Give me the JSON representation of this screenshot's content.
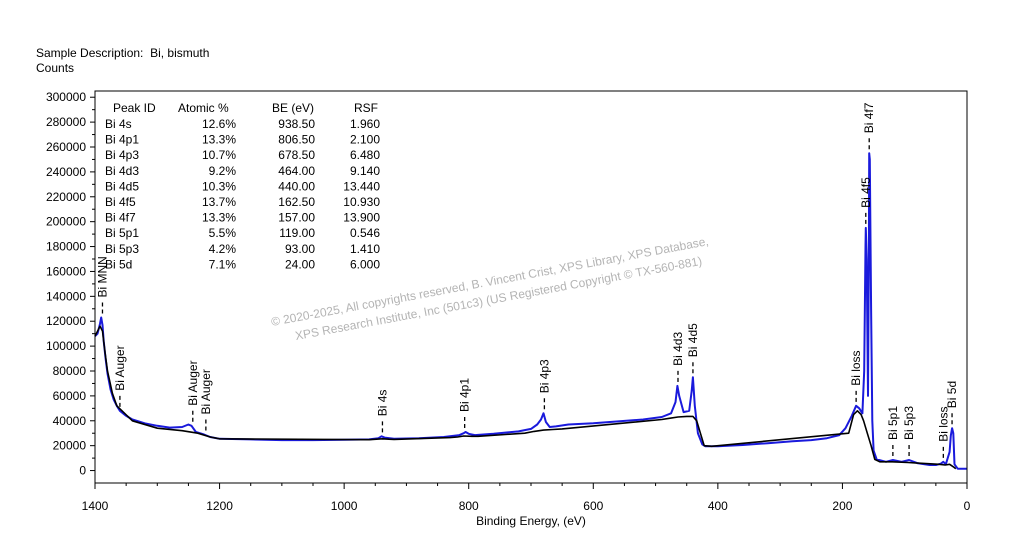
{
  "header": {
    "sample_label": "Sample Description:",
    "sample_value": "Bi, bismuth",
    "counts_label": "Counts"
  },
  "watermark": {
    "line1": "© 2020-2025, All copyrights reserved, B. Vincent Crist, XPS Library, XPS Database,",
    "line2": "XPS Research Institute, Inc (501c3) (US Registered Copyright © TX-560-881)"
  },
  "peak_table": {
    "headers": [
      "Peak ID",
      "Atomic %",
      "BE (eV)",
      "RSF"
    ],
    "rows": [
      [
        "Bi 4s",
        "12.6%",
        "938.50",
        "1.960"
      ],
      [
        "Bi 4p1",
        "13.3%",
        "806.50",
        "2.100"
      ],
      [
        "Bi 4p3",
        "10.7%",
        "678.50",
        "6.480"
      ],
      [
        "Bi 4d3",
        "9.2%",
        "464.00",
        "9.140"
      ],
      [
        "Bi 4d5",
        "10.3%",
        "440.00",
        "13.440"
      ],
      [
        "Bi 4f5",
        "13.7%",
        "162.50",
        "10.930"
      ],
      [
        "Bi 4f7",
        "13.3%",
        "157.00",
        "13.900"
      ],
      [
        "Bi 5p1",
        "5.5%",
        "119.00",
        "0.546"
      ],
      [
        "Bi 5p3",
        "4.2%",
        "93.00",
        "1.410"
      ],
      [
        "Bi 5d",
        "7.1%",
        "24.00",
        "6.000"
      ]
    ]
  },
  "chart_data": {
    "type": "line",
    "title": "",
    "xlabel": "Binding Energy, (eV)",
    "ylabel": "Counts",
    "xlim": [
      1400,
      0
    ],
    "ylim": [
      -10000,
      305000
    ],
    "x_ticks": [
      1400,
      1200,
      1000,
      800,
      600,
      400,
      200,
      0
    ],
    "y_ticks": [
      0,
      20000,
      40000,
      60000,
      80000,
      100000,
      120000,
      140000,
      160000,
      180000,
      200000,
      220000,
      240000,
      260000,
      280000,
      300000
    ],
    "colors": {
      "spectrum": "#1a1adc",
      "background": "#000000",
      "axis": "#000000"
    },
    "series": [
      {
        "name": "spectrum",
        "points": [
          [
            1400,
            108000
          ],
          [
            1396,
            110000
          ],
          [
            1392,
            118000
          ],
          [
            1390,
            123000
          ],
          [
            1388,
            117000
          ],
          [
            1386,
            104000
          ],
          [
            1383,
            90000
          ],
          [
            1380,
            78000
          ],
          [
            1375,
            65000
          ],
          [
            1370,
            57000
          ],
          [
            1365,
            52000
          ],
          [
            1360,
            48000
          ],
          [
            1350,
            44000
          ],
          [
            1340,
            41000
          ],
          [
            1320,
            38000
          ],
          [
            1300,
            36000
          ],
          [
            1280,
            34500
          ],
          [
            1260,
            35000
          ],
          [
            1250,
            37000
          ],
          [
            1245,
            36000
          ],
          [
            1238,
            31000
          ],
          [
            1225,
            29000
          ],
          [
            1215,
            27000
          ],
          [
            1200,
            25500
          ],
          [
            1150,
            25000
          ],
          [
            1100,
            24500
          ],
          [
            1050,
            24500
          ],
          [
            1000,
            24700
          ],
          [
            960,
            25000
          ],
          [
            945,
            26000
          ],
          [
            940,
            27500
          ],
          [
            935,
            26500
          ],
          [
            920,
            25500
          ],
          [
            880,
            26000
          ],
          [
            840,
            27000
          ],
          [
            815,
            28500
          ],
          [
            808,
            30000
          ],
          [
            805,
            31000
          ],
          [
            800,
            29500
          ],
          [
            790,
            28500
          ],
          [
            760,
            29500
          ],
          [
            720,
            31500
          ],
          [
            700,
            33500
          ],
          [
            690,
            37000
          ],
          [
            684,
            41000
          ],
          [
            680,
            46000
          ],
          [
            676,
            39000
          ],
          [
            670,
            35000
          ],
          [
            660,
            35500
          ],
          [
            640,
            37000
          ],
          [
            600,
            38000
          ],
          [
            560,
            39500
          ],
          [
            520,
            41000
          ],
          [
            490,
            43000
          ],
          [
            475,
            46000
          ],
          [
            468,
            55000
          ],
          [
            465,
            68000
          ],
          [
            462,
            60000
          ],
          [
            455,
            47000
          ],
          [
            446,
            48000
          ],
          [
            442,
            64000
          ],
          [
            440,
            75000
          ],
          [
            437,
            52000
          ],
          [
            432,
            30000
          ],
          [
            425,
            21000
          ],
          [
            420,
            19500
          ],
          [
            400,
            19500
          ],
          [
            360,
            20500
          ],
          [
            320,
            22000
          ],
          [
            280,
            23500
          ],
          [
            250,
            24500
          ],
          [
            225,
            26000
          ],
          [
            205,
            28500
          ],
          [
            195,
            34000
          ],
          [
            185,
            44000
          ],
          [
            178,
            52000
          ],
          [
            173,
            50000
          ],
          [
            168,
            46000
          ],
          [
            165,
            80000
          ],
          [
            163,
            180000
          ],
          [
            162.5,
            195000
          ],
          [
            161,
            170000
          ],
          [
            159,
            60000
          ],
          [
            157.5,
            180000
          ],
          [
            157,
            255000
          ],
          [
            156,
            250000
          ],
          [
            154,
            130000
          ],
          [
            152,
            40000
          ],
          [
            150,
            16000
          ],
          [
            145,
            9000
          ],
          [
            130,
            7000
          ],
          [
            119,
            8500
          ],
          [
            105,
            7000
          ],
          [
            93,
            8500
          ],
          [
            80,
            6000
          ],
          [
            60,
            4500
          ],
          [
            50,
            4500
          ],
          [
            42,
            5500
          ],
          [
            38,
            7000
          ],
          [
            34,
            5000
          ],
          [
            28,
            15000
          ],
          [
            26,
            28000
          ],
          [
            24,
            34000
          ],
          [
            22,
            30000
          ],
          [
            20,
            5000
          ],
          [
            15,
            1500
          ],
          [
            10,
            1500
          ],
          [
            0,
            1500
          ]
        ]
      },
      {
        "name": "background",
        "points": [
          [
            1400,
            108000
          ],
          [
            1392,
            116000
          ],
          [
            1388,
            112000
          ],
          [
            1384,
            95000
          ],
          [
            1380,
            80000
          ],
          [
            1372,
            62000
          ],
          [
            1365,
            52000
          ],
          [
            1340,
            40000
          ],
          [
            1300,
            34000
          ],
          [
            1260,
            32000
          ],
          [
            1235,
            30000
          ],
          [
            1215,
            27000
          ],
          [
            1200,
            25500
          ],
          [
            960,
            24800
          ],
          [
            948,
            25200
          ],
          [
            938,
            25500
          ],
          [
            928,
            25200
          ],
          [
            920,
            25000
          ],
          [
            830,
            26500
          ],
          [
            818,
            27000
          ],
          [
            808,
            27800
          ],
          [
            795,
            27500
          ],
          [
            785,
            27500
          ],
          [
            710,
            30000
          ],
          [
            695,
            31500
          ],
          [
            680,
            32500
          ],
          [
            665,
            33000
          ],
          [
            650,
            33500
          ],
          [
            490,
            41000
          ],
          [
            478,
            42000
          ],
          [
            464,
            43000
          ],
          [
            450,
            43500
          ],
          [
            440,
            43500
          ],
          [
            434,
            40000
          ],
          [
            428,
            30000
          ],
          [
            422,
            20000
          ],
          [
            410,
            19500
          ],
          [
            190,
            30000
          ],
          [
            182,
            45000
          ],
          [
            176,
            48000
          ],
          [
            170,
            45000
          ],
          [
            166,
            40000
          ],
          [
            160,
            30000
          ],
          [
            154,
            20000
          ],
          [
            148,
            9000
          ],
          [
            140,
            7000
          ],
          [
            120,
            7000
          ],
          [
            95,
            6500
          ],
          [
            80,
            6000
          ],
          [
            45,
            5000
          ],
          [
            35,
            4500
          ],
          [
            28,
            5000
          ],
          [
            22,
            3000
          ],
          [
            18,
            1500
          ]
        ]
      }
    ],
    "peak_labels": [
      {
        "text": "Bi MNN",
        "x": 1388,
        "y": 123000
      },
      {
        "text": "Bi Auger",
        "x": 1360,
        "y": 48000
      },
      {
        "text": "Bi Auger",
        "x": 1243,
        "y": 36000
      },
      {
        "text": "Bi Auger",
        "x": 1222,
        "y": 29000
      },
      {
        "text": "Bi 4s",
        "x": 938.5,
        "y": 27500
      },
      {
        "text": "Bi 4p1",
        "x": 806.5,
        "y": 31000
      },
      {
        "text": "Bi 4p3",
        "x": 678.5,
        "y": 46000
      },
      {
        "text": "Bi 4d3",
        "x": 464,
        "y": 68000
      },
      {
        "text": "Bi 4d5",
        "x": 440,
        "y": 75000
      },
      {
        "text": "Bi loss",
        "x": 178,
        "y": 52000
      },
      {
        "text": "Bi 4f5",
        "x": 162.5,
        "y": 195000
      },
      {
        "text": "Bi 4f7",
        "x": 157,
        "y": 255000
      },
      {
        "text": "Bi 5p1",
        "x": 119,
        "y": 8500
      },
      {
        "text": "Bi 5p3",
        "x": 93,
        "y": 8500
      },
      {
        "text": "Bi loss",
        "x": 38,
        "y": 7000
      },
      {
        "text": "Bi 5d",
        "x": 24,
        "y": 34000
      }
    ]
  }
}
